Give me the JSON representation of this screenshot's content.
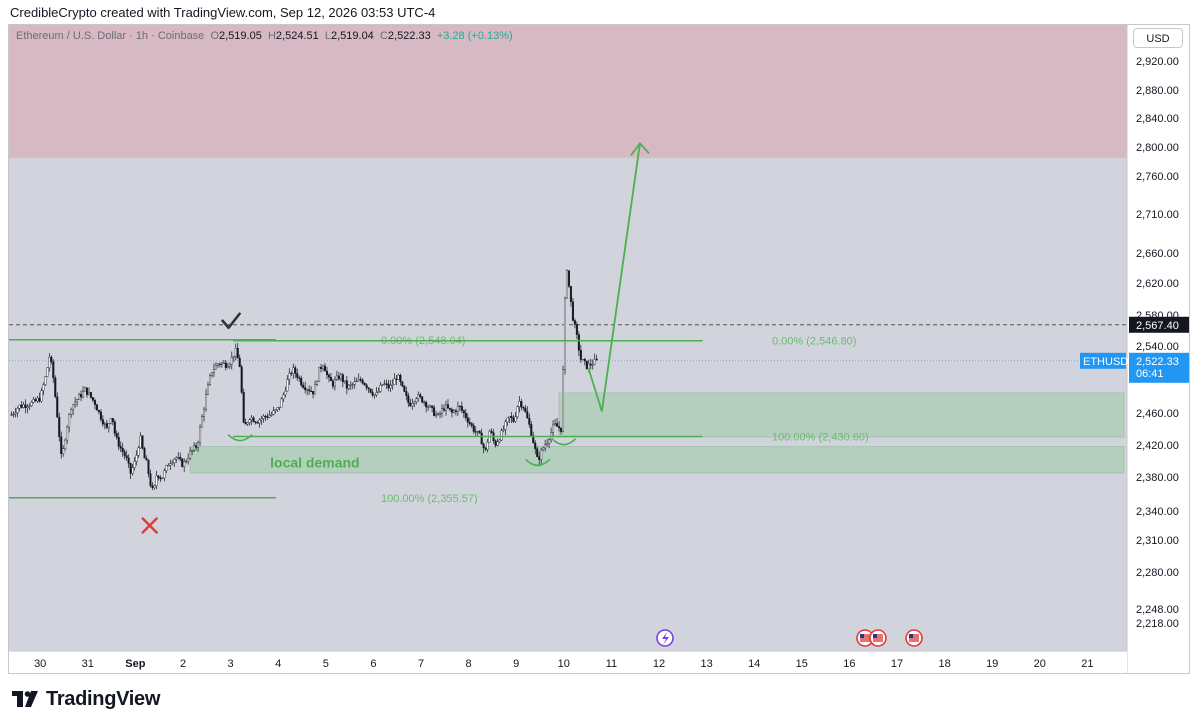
{
  "header": {
    "text": "CredibleCrypto created with TradingView.com, Sep 12, 2026 03:53 UTC-4"
  },
  "legend": {
    "symbol": "Ethereum / U.S. Dollar · 1h · Coinbase",
    "open_label": "O",
    "open": "2,519.05",
    "high_label": "H",
    "high": "2,524.51",
    "low_label": "L",
    "low": "2,519.04",
    "close_label": "C",
    "close": "2,522.33",
    "change": "+3.28 (+0.13%)"
  },
  "currency_button": "USD",
  "brand": {
    "name": "TradingView"
  },
  "colors": {
    "plot_bg": "#d1d4dc",
    "supply_zone": "#d6b9c3",
    "demand_zone": "#b4cfbd",
    "green": "#4caf50",
    "fib_text": "#6dbb6f",
    "red_x": "#e53935",
    "eth_label": "#2196f3",
    "candle": "#131722"
  },
  "chart_data": {
    "type": "candlestick",
    "symbol": "ETHUSD",
    "timeframe": "1h",
    "exchange": "Coinbase",
    "y_ticks": [
      2920,
      2880,
      2840,
      2800,
      2760,
      2710,
      2660,
      2620,
      2580,
      2540,
      2460,
      2420,
      2380,
      2340,
      2310,
      2280,
      2248,
      2218
    ],
    "y_tick_labels": [
      "2,920.00",
      "2,880.00",
      "2,840.00",
      "2,800.00",
      "2,760.00",
      "2,710.00",
      "2,660.00",
      "2,620.00",
      "2,580.00",
      "2,540.00",
      "2,460.00",
      "2,420.00",
      "2,380.00",
      "2,340.00",
      "2,310.00",
      "2,280.00",
      "2,248.00",
      "2,218.00"
    ],
    "x_ticks": [
      {
        "label": "30",
        "day": -3
      },
      {
        "label": "31",
        "day": -2
      },
      {
        "label": "Sep",
        "day": -1
      },
      {
        "label": "2",
        "day": 0
      },
      {
        "label": "3",
        "day": 1
      },
      {
        "label": "4",
        "day": 2
      },
      {
        "label": "5",
        "day": 3
      },
      {
        "label": "6",
        "day": 4
      },
      {
        "label": "7",
        "day": 5
      },
      {
        "label": "8",
        "day": 6
      },
      {
        "label": "9",
        "day": 7
      },
      {
        "label": "10",
        "day": 8
      },
      {
        "label": "11",
        "day": 9
      },
      {
        "label": "12",
        "day": 10
      },
      {
        "label": "13",
        "day": 11
      },
      {
        "label": "14",
        "day": 12
      },
      {
        "label": "15",
        "day": 13
      },
      {
        "label": "16",
        "day": 14
      },
      {
        "label": "17",
        "day": 15
      },
      {
        "label": "18",
        "day": 16
      },
      {
        "label": "19",
        "day": 17
      },
      {
        "label": "20",
        "day": 18
      },
      {
        "label": "21",
        "day": 19
      }
    ],
    "price_path": [
      [
        -3.6,
        2458
      ],
      [
        -3.45,
        2468
      ],
      [
        -3.3,
        2470
      ],
      [
        -3.15,
        2472
      ],
      [
        -3.0,
        2478
      ],
      [
        -2.88,
        2505
      ],
      [
        -2.8,
        2530
      ],
      [
        -2.72,
        2500
      ],
      [
        -2.62,
        2445
      ],
      [
        -2.55,
        2400
      ],
      [
        -2.45,
        2440
      ],
      [
        -2.35,
        2468
      ],
      [
        -2.2,
        2478
      ],
      [
        -2.05,
        2488
      ],
      [
        -1.95,
        2480
      ],
      [
        -1.85,
        2472
      ],
      [
        -1.75,
        2458
      ],
      [
        -1.6,
        2440
      ],
      [
        -1.5,
        2460
      ],
      [
        -1.42,
        2430
      ],
      [
        -1.3,
        2415
      ],
      [
        -1.2,
        2405
      ],
      [
        -1.1,
        2385
      ],
      [
        -1.0,
        2400
      ],
      [
        -0.9,
        2430
      ],
      [
        -0.82,
        2405
      ],
      [
        -0.75,
        2395
      ],
      [
        -0.7,
        2375
      ],
      [
        -0.62,
        2360
      ],
      [
        -0.55,
        2385
      ],
      [
        -0.45,
        2378
      ],
      [
        -0.3,
        2398
      ],
      [
        -0.15,
        2405
      ],
      [
        0.0,
        2395
      ],
      [
        0.15,
        2410
      ],
      [
        0.3,
        2420
      ],
      [
        0.4,
        2455
      ],
      [
        0.5,
        2485
      ],
      [
        0.6,
        2510
      ],
      [
        0.75,
        2520
      ],
      [
        0.9,
        2518
      ],
      [
        1.0,
        2522
      ],
      [
        1.1,
        2535
      ],
      [
        1.2,
        2515
      ],
      [
        1.28,
        2440
      ],
      [
        1.4,
        2455
      ],
      [
        1.55,
        2450
      ],
      [
        1.7,
        2455
      ],
      [
        1.85,
        2458
      ],
      [
        2.0,
        2465
      ],
      [
        2.1,
        2480
      ],
      [
        2.2,
        2500
      ],
      [
        2.3,
        2512
      ],
      [
        2.4,
        2505
      ],
      [
        2.5,
        2495
      ],
      [
        2.6,
        2490
      ],
      [
        2.75,
        2485
      ],
      [
        2.85,
        2510
      ],
      [
        2.95,
        2520
      ],
      [
        3.05,
        2500
      ],
      [
        3.15,
        2495
      ],
      [
        3.3,
        2505
      ],
      [
        3.45,
        2490
      ],
      [
        3.6,
        2495
      ],
      [
        3.75,
        2500
      ],
      [
        3.9,
        2490
      ],
      [
        4.05,
        2480
      ],
      [
        4.2,
        2495
      ],
      [
        4.35,
        2490
      ],
      [
        4.5,
        2505
      ],
      [
        4.6,
        2490
      ],
      [
        4.75,
        2470
      ],
      [
        4.9,
        2480
      ],
      [
        5.05,
        2475
      ],
      [
        5.2,
        2465
      ],
      [
        5.35,
        2455
      ],
      [
        5.5,
        2468
      ],
      [
        5.65,
        2460
      ],
      [
        5.8,
        2468
      ],
      [
        5.95,
        2455
      ],
      [
        6.1,
        2440
      ],
      [
        6.25,
        2430
      ],
      [
        6.35,
        2410
      ],
      [
        6.45,
        2440
      ],
      [
        6.55,
        2420
      ],
      [
        6.7,
        2435
      ],
      [
        6.85,
        2455
      ],
      [
        6.95,
        2450
      ],
      [
        7.05,
        2475
      ],
      [
        7.15,
        2468
      ],
      [
        7.3,
        2440
      ],
      [
        7.45,
        2400
      ],
      [
        7.55,
        2415
      ],
      [
        7.65,
        2425
      ],
      [
        7.8,
        2445
      ],
      [
        7.95,
        2440
      ],
      [
        8.05,
        2650
      ],
      [
        8.1,
        2620
      ],
      [
        8.18,
        2580
      ],
      [
        8.28,
        2550
      ],
      [
        8.35,
        2525
      ],
      [
        8.42,
        2520
      ],
      [
        8.5,
        2515
      ],
      [
        8.6,
        2520
      ],
      [
        8.7,
        2522
      ]
    ],
    "price_noise_seed": 7,
    "levels": {
      "dashed_price": 2567.4,
      "dashed_price_label": "2,567.40",
      "last_price": 2522.33,
      "last_price_label": "2,522.33",
      "countdown": "06:41",
      "symbol_label": "ETHUSD",
      "fib_left_top": {
        "price": 2548.04,
        "label": "0.00% (2,548.04)",
        "from_day": -3.95,
        "to_day": 1.95
      },
      "fib_left_bottom": {
        "price": 2355.57,
        "label": "100.00% (2,355.57)",
        "from_day": -3.95,
        "to_day": 1.95
      },
      "fib_right_top": {
        "price": 2546.8,
        "label": "0.00% (2,546.80)",
        "from_day": 1.9,
        "to_day": 11.0
      },
      "fib_right_bottom": {
        "price": 2430.6,
        "label": "100.00% (2,430.60)",
        "from_day": 1.9,
        "to_day": 11.0
      }
    },
    "zones": {
      "supply": {
        "from_price": 2980,
        "to_price": 2785
      },
      "demand_local": {
        "from_price": 2418,
        "to_price": 2385,
        "from_day": 0.15,
        "to_day": 11.0,
        "label": "local demand"
      },
      "demand_upper": {
        "from_price": 2484,
        "to_price": 2430,
        "from_day": 7.9,
        "to_day": 11.0
      }
    },
    "annotations": {
      "projection": [
        [
          8.52,
          2513
        ],
        [
          8.8,
          2462
        ],
        [
          9.6,
          2805
        ]
      ],
      "checkmark_day": 1.0,
      "checkmark_price": 2570,
      "red_x_day": -0.7,
      "red_x_price": 2325,
      "smiles": [
        [
          1.2,
          2433
        ],
        [
          7.45,
          2402
        ],
        [
          8.0,
          2428
        ]
      ]
    }
  }
}
